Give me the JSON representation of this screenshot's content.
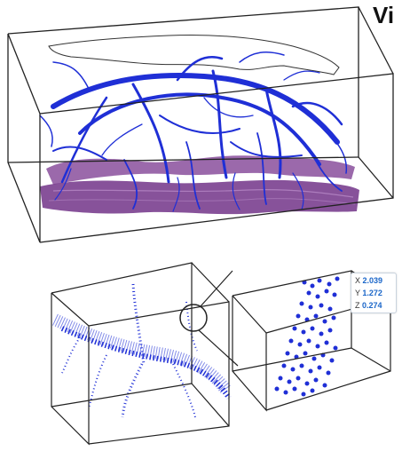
{
  "header": {
    "title_fragment": "Vi"
  },
  "datatip": {
    "x_label": "X",
    "x_value": "2.039",
    "y_label": "Y",
    "y_value": "1.272",
    "z_label": "Z",
    "z_value": "0.274"
  },
  "colors": {
    "network": "#1f2fd6",
    "tissue": "#7a3f8f",
    "axes": "#222222",
    "tip_value": "#1a66c9"
  },
  "icons": [
    "zoom-callout-circle-icon"
  ]
}
